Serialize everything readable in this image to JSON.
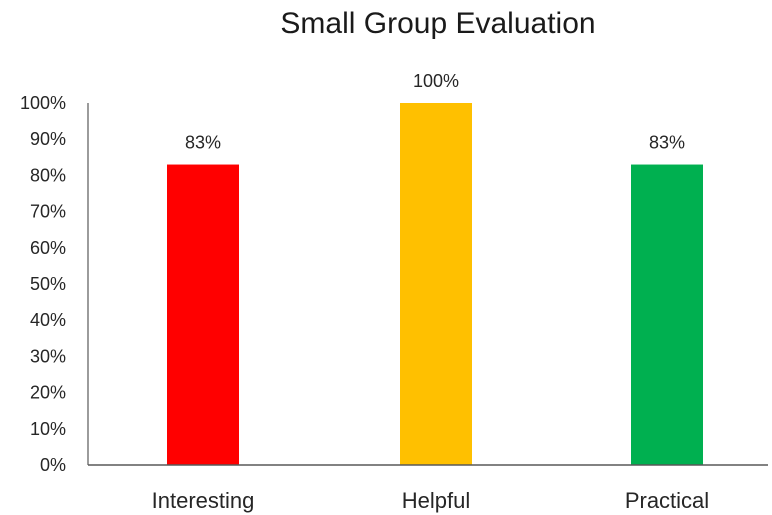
{
  "chart_data": {
    "type": "bar",
    "title": "Small Group Evaluation",
    "xlabel": "",
    "ylabel": "",
    "categories": [
      "Interesting",
      "Helpful",
      "Practical"
    ],
    "values": [
      83,
      100,
      83
    ],
    "data_labels": [
      "83%",
      "100%",
      "83%"
    ],
    "colors": [
      "#ff0000",
      "#ffc000",
      "#00b050"
    ],
    "ylim": [
      0,
      100
    ],
    "y_ticks": [
      0,
      10,
      20,
      30,
      40,
      50,
      60,
      70,
      80,
      90,
      100
    ],
    "y_tick_labels": [
      "0%",
      "10%",
      "20%",
      "30%",
      "40%",
      "50%",
      "60%",
      "70%",
      "80%",
      "90%",
      "100%"
    ],
    "grid": false,
    "legend": "none"
  }
}
